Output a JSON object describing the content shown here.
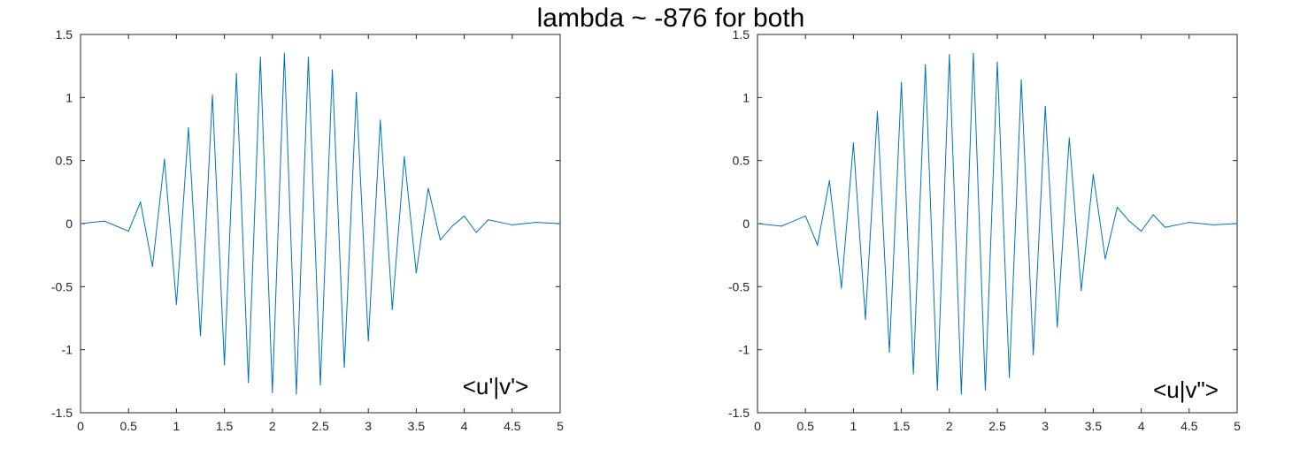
{
  "figure_title": "lambda ~ -876 for both",
  "chart_data": [
    {
      "type": "line",
      "annotation": "<u'|v'>",
      "xlim": [
        0,
        5
      ],
      "ylim": [
        -1.5,
        1.5
      ],
      "xticks": [
        "0",
        "0.5",
        "1",
        "1.5",
        "2",
        "2.5",
        "3",
        "3.5",
        "4",
        "4.5",
        "5"
      ],
      "yticks": [
        "1.5",
        "1",
        "0.5",
        "0",
        "-0.5",
        "-1",
        "-1.5"
      ],
      "line_color": "#0072BD",
      "series": [
        {
          "x": [
            0,
            0.25,
            0.5,
            0.625,
            0.75,
            0.875,
            1,
            1.125,
            1.25,
            1.375,
            1.5,
            1.625,
            1.75,
            1.875,
            2,
            2.125,
            2.25,
            2.375,
            2.5,
            2.625,
            2.75,
            2.875,
            3,
            3.125,
            3.25,
            3.375,
            3.5,
            3.625,
            3.75,
            3.875,
            4,
            4.125,
            4.25,
            4.375,
            4.5,
            4.75,
            5
          ],
          "y": [
            0,
            0.02,
            -0.06,
            0.17,
            -0.34,
            0.51,
            -0.64,
            0.76,
            -0.89,
            1.02,
            -1.12,
            1.19,
            -1.26,
            1.32,
            -1.34,
            1.35,
            -1.35,
            1.32,
            -1.28,
            1.22,
            -1.14,
            1.04,
            -0.93,
            0.82,
            -0.68,
            0.53,
            -0.39,
            0.28,
            -0.13,
            -0.02,
            0.06,
            -0.07,
            0.03,
            0.01,
            -0.01,
            0.01,
            0
          ]
        }
      ]
    },
    {
      "type": "line",
      "annotation": "<u|v\">",
      "xlim": [
        0,
        5
      ],
      "ylim": [
        -1.5,
        1.5
      ],
      "xticks": [
        "0",
        "0.5",
        "1",
        "1.5",
        "2",
        "2.5",
        "3",
        "3.5",
        "4",
        "4.5",
        "5"
      ],
      "yticks": [
        "1.5",
        "1",
        "0.5",
        "0",
        "-0.5",
        "-1",
        "-1.5"
      ],
      "line_color": "#0072BD",
      "series": [
        {
          "x": [
            0,
            0.25,
            0.5,
            0.625,
            0.75,
            0.875,
            1,
            1.125,
            1.25,
            1.375,
            1.5,
            1.625,
            1.75,
            1.875,
            2,
            2.125,
            2.25,
            2.375,
            2.5,
            2.625,
            2.75,
            2.875,
            3,
            3.125,
            3.25,
            3.375,
            3.5,
            3.625,
            3.75,
            3.875,
            4,
            4.125,
            4.25,
            4.375,
            4.5,
            4.75,
            5
          ],
          "y": [
            0,
            -0.02,
            0.06,
            -0.17,
            0.34,
            -0.51,
            0.64,
            -0.76,
            0.89,
            -1.02,
            1.12,
            -1.19,
            1.26,
            -1.32,
            1.34,
            -1.35,
            1.35,
            -1.32,
            1.28,
            -1.22,
            1.14,
            -1.04,
            0.93,
            -0.82,
            0.68,
            -0.53,
            0.39,
            -0.28,
            0.13,
            0.02,
            -0.06,
            0.07,
            -0.03,
            -0.01,
            0.01,
            -0.01,
            0
          ]
        }
      ]
    }
  ]
}
